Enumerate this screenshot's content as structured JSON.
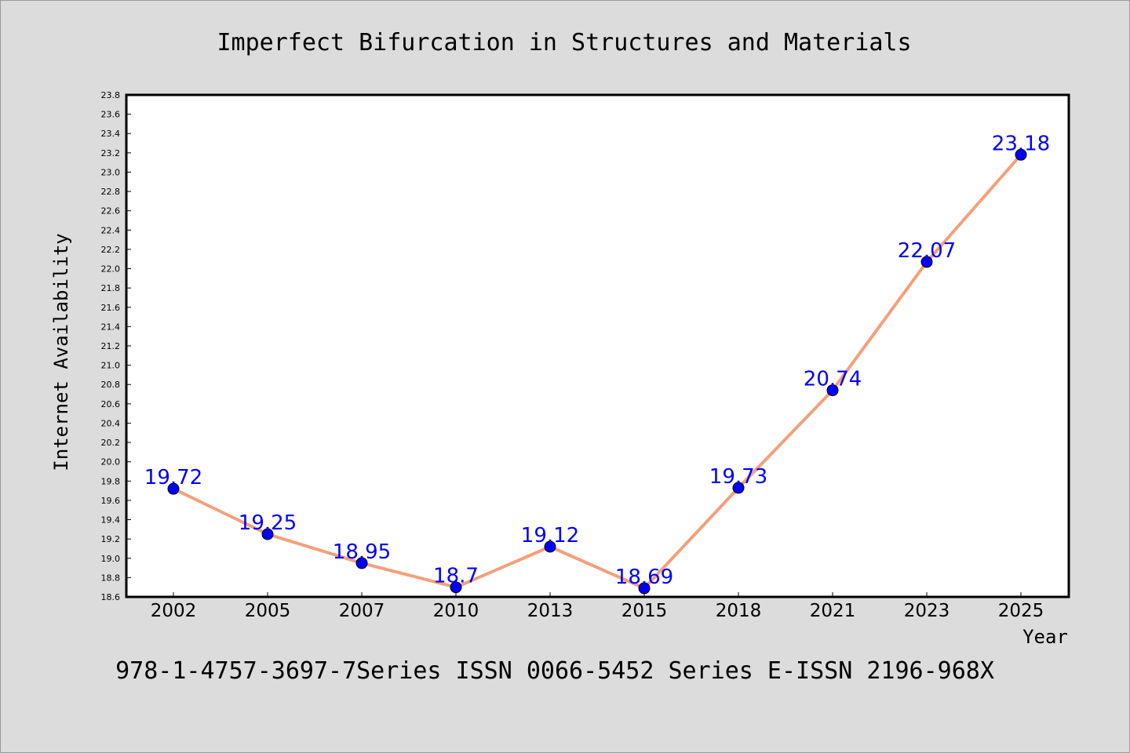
{
  "chart_data": {
    "type": "line",
    "title": "Imperfect Bifurcation in Structures and Materials",
    "xlabel": "Year",
    "ylabel": "Internet Availability",
    "categories": [
      "2002",
      "2005",
      "2007",
      "2010",
      "2013",
      "2015",
      "2018",
      "2021",
      "2023",
      "2025"
    ],
    "series": [
      {
        "values": [
          19.72,
          19.25,
          18.95,
          18.7,
          19.12,
          18.69,
          19.73,
          20.74,
          22.07,
          23.18
        ],
        "data_labels": [
          "19.72",
          "19.25",
          "18.95",
          "18.7",
          "19.12",
          "18.69",
          "19.73",
          "20.74",
          "22.07",
          "23.18"
        ]
      }
    ],
    "ylim": [
      18.6,
      23.8
    ],
    "yticks": [
      "18.6",
      "18.8",
      "19.0",
      "19.2",
      "19.4",
      "19.6",
      "19.8",
      "20.0",
      "20.2",
      "20.4",
      "20.6",
      "20.8",
      "21.0",
      "21.2",
      "21.4",
      "21.6",
      "21.8",
      "22.0",
      "22.2",
      "22.4",
      "22.6",
      "22.8",
      "23.0",
      "23.2",
      "23.4",
      "23.6",
      "23.8"
    ],
    "grid": false,
    "legend": "none",
    "colors": {
      "line": "#f4a07a",
      "marker": "#0000ff",
      "label": "#0000ff",
      "background": "#dcdcdc",
      "plot_background": "#ffffff"
    }
  },
  "footer": "978-1-4757-3697-7Series ISSN 0066-5452 Series E-ISSN 2196-968X"
}
